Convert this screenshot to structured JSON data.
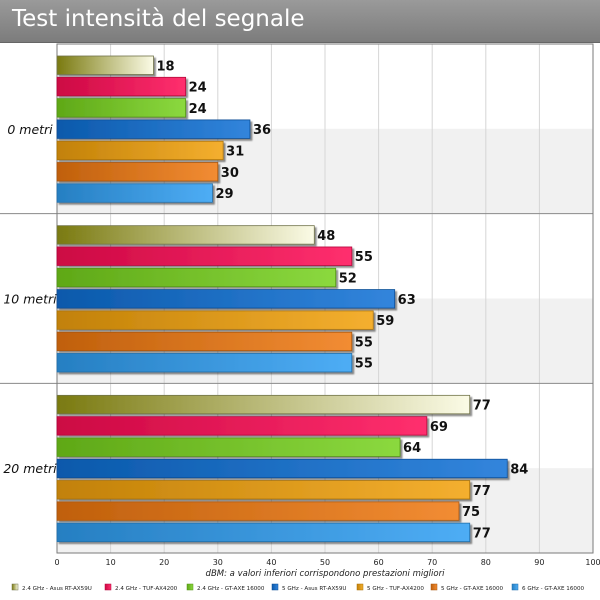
{
  "chart_data": {
    "type": "bar",
    "orientation": "horizontal",
    "title": "Test intensità del segnale",
    "xlabel": "dBM: a valori inferiori corrispondono prestazioni migliori",
    "ylabel": "",
    "xlim": [
      0,
      100
    ],
    "x_ticks": [
      "0",
      "10",
      "20",
      "30",
      "40",
      "50",
      "60",
      "70",
      "80",
      "90",
      "100"
    ],
    "categories": [
      "0 metri",
      "10 metri",
      "20 metri"
    ],
    "series": [
      {
        "name": "2.4 GHz - Asus RT-AX59U",
        "values": [
          18,
          48,
          77
        ],
        "color": "#a2a56a"
      },
      {
        "name": "2.4 GHz - TUF-AX4200",
        "values": [
          24,
          55,
          69
        ],
        "color": "#ff0a54"
      },
      {
        "name": "2.4 GHz - GT-AXE 16000",
        "values": [
          24,
          52,
          64
        ],
        "color": "#77d21d"
      },
      {
        "name": "5 GHz - Asus RT-AX59U",
        "values": [
          36,
          63,
          84
        ],
        "color": "#0e6fd6"
      },
      {
        "name": "5 GHz - TUF-AX4200",
        "values": [
          31,
          59,
          77
        ],
        "color": "#f2a10a"
      },
      {
        "name": "5 GHz - GT-AXE 16000",
        "values": [
          30,
          55,
          75
        ],
        "color": "#f0780f"
      },
      {
        "name": "6 GHz - GT-AXE 16000",
        "values": [
          29,
          55,
          77
        ],
        "color": "#2f9ff3"
      }
    ],
    "grid": true,
    "legend_position": "bottom"
  }
}
